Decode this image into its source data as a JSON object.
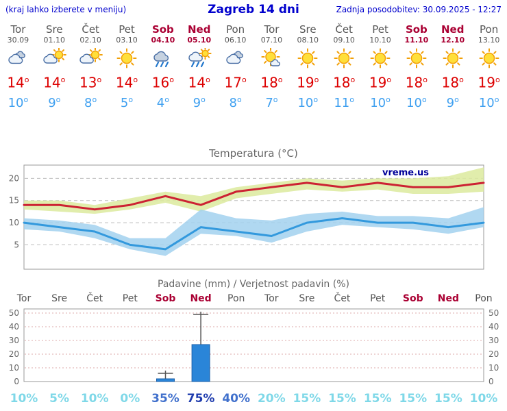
{
  "header": {
    "left_note": "(kraj lahko izberete v meniju)",
    "title": "Zagreb 14 dni",
    "updated": "Zadnja posodobitev: 30.09.2025 - 12:27"
  },
  "deg_symbol": "o",
  "days": [
    {
      "name": "Tor",
      "date": "30.09",
      "weekend": false,
      "icon": "cloudy",
      "tmax": 14,
      "tmin": 10
    },
    {
      "name": "Sre",
      "date": "01.10",
      "weekend": false,
      "icon": "partly",
      "tmax": 14,
      "tmin": 9
    },
    {
      "name": "Čet",
      "date": "02.10",
      "weekend": false,
      "icon": "partly",
      "tmax": 13,
      "tmin": 8
    },
    {
      "name": "Pet",
      "date": "03.10",
      "weekend": false,
      "icon": "sunny",
      "tmax": 14,
      "tmin": 5
    },
    {
      "name": "Sob",
      "date": "04.10",
      "weekend": true,
      "icon": "rain",
      "tmax": 16,
      "tmin": 4
    },
    {
      "name": "Ned",
      "date": "05.10",
      "weekend": true,
      "icon": "sun-rain",
      "tmax": 14,
      "tmin": 9
    },
    {
      "name": "Pon",
      "date": "06.10",
      "weekend": false,
      "icon": "cloudy",
      "tmax": 17,
      "tmin": 8
    },
    {
      "name": "Tor",
      "date": "07.10",
      "weekend": false,
      "icon": "mostly-sunny",
      "tmax": 18,
      "tmin": 7
    },
    {
      "name": "Sre",
      "date": "08.10",
      "weekend": false,
      "icon": "sunny",
      "tmax": 19,
      "tmin": 10
    },
    {
      "name": "Čet",
      "date": "09.10",
      "weekend": false,
      "icon": "sunny",
      "tmax": 18,
      "tmin": 11
    },
    {
      "name": "Pet",
      "date": "10.10",
      "weekend": false,
      "icon": "sunny",
      "tmax": 19,
      "tmin": 10
    },
    {
      "name": "Sob",
      "date": "11.10",
      "weekend": true,
      "icon": "sunny",
      "tmax": 18,
      "tmin": 10
    },
    {
      "name": "Ned",
      "date": "12.10",
      "weekend": true,
      "icon": "sunny",
      "tmax": 18,
      "tmin": 9
    },
    {
      "name": "Pon",
      "date": "13.10",
      "weekend": false,
      "icon": "sunny",
      "tmax": 19,
      "tmin": 10
    }
  ],
  "chart_data": [
    {
      "type": "line",
      "title": "Temperatura (°C)",
      "watermark": "vreme.us",
      "x_categories": [
        "Tor 30.09",
        "Sre 01.10",
        "Čet 02.10",
        "Pet 03.10",
        "Sob 04.10",
        "Ned 05.10",
        "Pon 06.10",
        "Tor 07.10",
        "Sre 08.10",
        "Čet 09.10",
        "Pet 10.10",
        "Sob 11.10",
        "Ned 12.10",
        "Pon 13.10"
      ],
      "ylim": [
        -0.5,
        23
      ],
      "yticks": [
        5,
        10,
        15,
        20
      ],
      "grid": true,
      "legend": "none",
      "series": [
        {
          "name": "temp-max",
          "color_key": "line_max",
          "values": [
            14,
            14,
            13,
            14,
            16,
            14,
            17,
            18,
            19,
            18,
            19,
            18,
            18,
            19
          ]
        },
        {
          "name": "temp-min",
          "color_key": "line_min",
          "values": [
            10,
            9,
            8,
            5,
            4,
            9,
            8,
            7,
            10,
            11,
            10,
            10,
            9,
            10
          ]
        }
      ],
      "bands": [
        {
          "name": "temp-max-range",
          "color_key": "band_max",
          "hi": [
            15,
            15,
            14,
            15.5,
            17,
            16,
            18,
            19,
            20,
            19.5,
            20,
            20,
            20.5,
            22.5
          ],
          "lo": [
            13,
            12.5,
            12,
            13,
            14.5,
            12.5,
            15.5,
            16.5,
            17.5,
            17,
            17.5,
            16.5,
            16.5,
            17
          ]
        },
        {
          "name": "temp-min-range",
          "color_key": "band_min",
          "hi": [
            11,
            10.5,
            9.5,
            6.5,
            6.5,
            13,
            11,
            10.5,
            12,
            12.5,
            11.5,
            11.5,
            11,
            13.5
          ],
          "lo": [
            8.5,
            8,
            6.5,
            4,
            2.5,
            7.5,
            7,
            5.5,
            8,
            9.5,
            9,
            8.5,
            7.5,
            9
          ]
        }
      ]
    },
    {
      "type": "bar",
      "title": "Padavine (mm) / Verjetnost padavin (%)",
      "x_categories": [
        "Tor",
        "Sre",
        "Čet",
        "Pet",
        "Sob",
        "Ned",
        "Pon",
        "Tor",
        "Sre",
        "Čet",
        "Pet",
        "Sob",
        "Ned",
        "Pon"
      ],
      "ylim": [
        0,
        53
      ],
      "yticks": [
        0,
        10,
        20,
        30,
        40,
        50
      ],
      "grid": true,
      "values_mm": [
        0,
        0,
        0,
        0,
        2,
        27,
        0,
        0,
        0,
        0,
        0,
        0,
        0,
        0
      ],
      "whisker_mm": [
        0,
        0,
        0,
        0,
        6,
        49,
        0,
        0,
        0,
        0,
        0,
        0,
        0,
        0
      ],
      "prob_labels": [
        "10%",
        "5%",
        "10%",
        "0%",
        "35%",
        "75%",
        "40%",
        "20%",
        "15%",
        "15%",
        "15%",
        "15%",
        "15%",
        "10%"
      ],
      "prob_levels": [
        "low",
        "low",
        "low",
        "low",
        "mid",
        "high",
        "mid",
        "low",
        "low",
        "low",
        "low",
        "low",
        "low",
        "low"
      ]
    }
  ],
  "colors": {
    "header_blue": "#0000cd",
    "weekday_text": "#555555",
    "weekend_text": "#aa0033",
    "temp_max_text": "#dd0000",
    "temp_min_text": "#3fa0f0",
    "chart_title": "#666666",
    "tick_text": "#666666",
    "line_max": "#cc2233",
    "line_min": "#3399dd",
    "band_max": "#dcea9e",
    "band_min": "#a2d1ef",
    "watermark": "#000099",
    "bar_fill": "#2a85d8",
    "bar_stroke": "#1b5fa8",
    "whisker": "#555555",
    "grid_temp": "#bbbbbb",
    "grid_precip": "#dda8a8",
    "plot_border": "#999999",
    "prob_low": "#7fd8e8",
    "prob_mid": "#4070cc",
    "prob_high": "#1f3cae",
    "sun_fill": "#ffdf3a",
    "sun_ray": "#f2a007",
    "cloud_fill": "#eef4fa",
    "cloud_stroke": "#4a6fa5",
    "cloud_dark_fill": "#c6d2e0",
    "rain_drop": "#2277cc"
  }
}
